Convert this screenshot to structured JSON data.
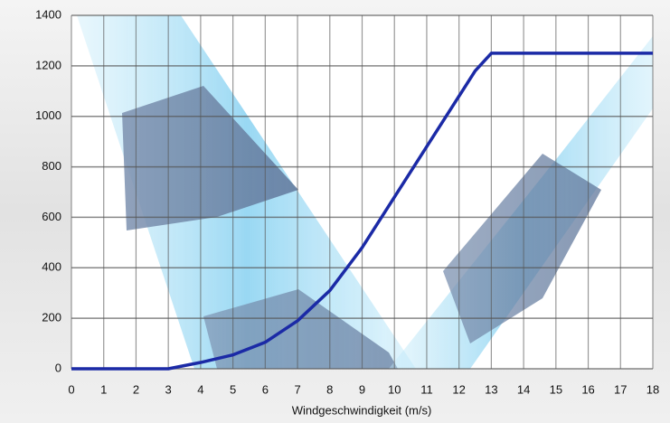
{
  "chart_data": {
    "type": "line",
    "x_label": "Windgeschwindigkeit (m/s)",
    "x": [
      0,
      1,
      2,
      3,
      4,
      5,
      6,
      7,
      8,
      9,
      10,
      11,
      12,
      12.5,
      13,
      18
    ],
    "series": [
      {
        "color": "#1b2aa6",
        "values": [
          0,
          0,
          0,
          0,
          25,
          55,
          105,
          190,
          310,
          480,
          680,
          880,
          1080,
          1180,
          1250,
          1250
        ]
      }
    ],
    "xlim": [
      0,
      18
    ],
    "xticks": [
      0,
      1,
      2,
      3,
      4,
      5,
      6,
      7,
      8,
      9,
      10,
      11,
      12,
      13,
      14,
      15,
      16,
      17,
      18
    ],
    "ylim": [
      0,
      1400
    ],
    "yticks": [
      0,
      200,
      400,
      600,
      800,
      1000,
      1200,
      1400
    ],
    "grid": true
  }
}
